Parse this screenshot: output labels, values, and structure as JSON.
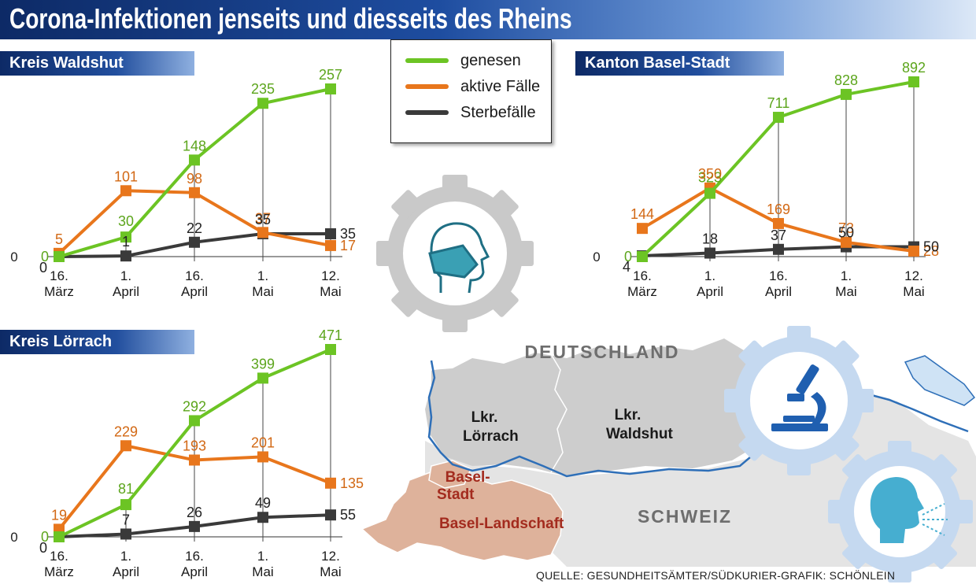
{
  "title": "Corona-Infektionen jenseits und diesseits des Rheins",
  "legend": [
    {
      "label": "genesen",
      "color": "#6cc424"
    },
    {
      "label": "aktive Fälle",
      "color": "#e8761c"
    },
    {
      "label": "Sterbefälle",
      "color": "#3a3a3a"
    }
  ],
  "chart_data": [
    {
      "type": "line",
      "title": "Kreis Waldshut",
      "categories": [
        "16. März",
        "1. April",
        "16. April",
        "1. Mai",
        "12. Mai"
      ],
      "series": [
        {
          "name": "genesen",
          "values": [
            0,
            30,
            148,
            235,
            257
          ]
        },
        {
          "name": "aktive Fälle",
          "values": [
            5,
            101,
            98,
            37,
            17
          ]
        },
        {
          "name": "Sterbefälle",
          "values": [
            0,
            1,
            22,
            35,
            35
          ]
        }
      ],
      "ytick": "0"
    },
    {
      "type": "line",
      "title": "Kanton Basel-Stadt",
      "categories": [
        "16. März",
        "1. April",
        "16. April",
        "1. Mai",
        "12. Mai"
      ],
      "series": [
        {
          "name": "genesen",
          "values": [
            0,
            323,
            711,
            828,
            892
          ]
        },
        {
          "name": "aktive Fälle",
          "values": [
            144,
            350,
            169,
            73,
            28
          ]
        },
        {
          "name": "Sterbefälle",
          "values": [
            4,
            18,
            37,
            50,
            50
          ]
        }
      ],
      "ytick": "0"
    },
    {
      "type": "line",
      "title": "Kreis Lörrach",
      "categories": [
        "16. März",
        "1. April",
        "16. April",
        "1. Mai",
        "12. Mai"
      ],
      "series": [
        {
          "name": "genesen",
          "values": [
            0,
            81,
            292,
            399,
            471
          ]
        },
        {
          "name": "aktive Fälle",
          "values": [
            19,
            229,
            193,
            201,
            135
          ]
        },
        {
          "name": "Sterbefälle",
          "values": [
            0,
            7,
            26,
            49,
            55
          ]
        }
      ],
      "ytick": "0"
    }
  ],
  "map": {
    "country_de": "DEUTSCHLAND",
    "country_ch": "SCHWEIZ",
    "region_loerrach": "Lkr.\nLörrach",
    "region_waldshut": "Lkr.\nWaldshut",
    "region_basel_stadt": "Basel-\nStadt",
    "region_basel_land": "Basel-Landschaft"
  },
  "icons": [
    "mask-head-icon",
    "microscope-icon",
    "coughing-head-icon",
    "gear-icon"
  ],
  "source": "QUELLE: GESUNDHEITSÄMTER/SÜDKURIER-GRAFIK: SCHÖNLEIN"
}
